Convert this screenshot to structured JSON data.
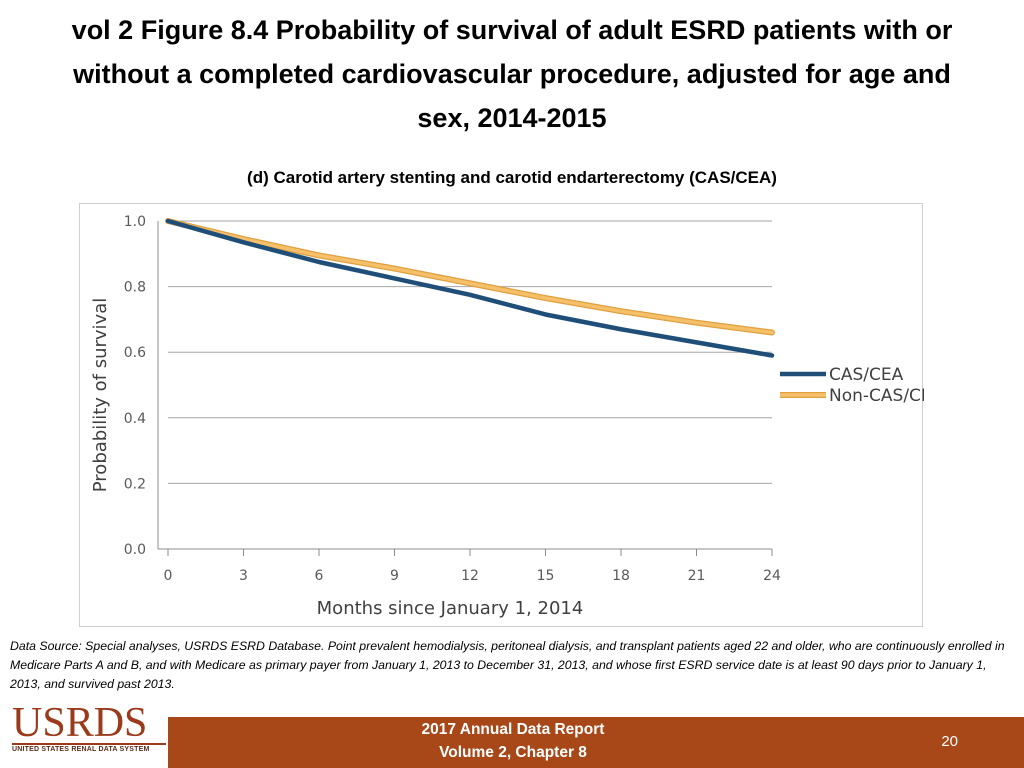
{
  "slide": {
    "title": "vol 2 Figure 8.4 Probability of survival of adult ESRD patients with or without a completed cardiovascular procedure, adjusted for age and sex, 2014-2015",
    "title_lines": [
      "vol 2 Figure 8.4 Probability of survival of adult ESRD patients with or",
      "without a completed cardiovascular procedure, adjusted for age and",
      "sex, 2014-2015"
    ],
    "subtitle": "(d) Carotid artery stenting and carotid endarterectomy (CAS/CEA)",
    "source_note": "Data Source: Special analyses, USRDS ESRD Database. Point prevalent hemodialysis, peritoneal dialysis, and transplant patients aged 22 and older, who are continuously enrolled in Medicare Parts A and B, and with Medicare as primary payer from January 1, 2013 to December 31, 2013, and whose first ESRD service date is at least 90 days prior to January 1, 2013, and survived past 2013."
  },
  "logo": {
    "word": "USRDS",
    "tagline": "UNITED STATES RENAL DATA SYSTEM"
  },
  "footer": {
    "line1": "2017 Annual Data Report",
    "line2": "Volume 2, Chapter 8",
    "page_number": "20",
    "bar_color": "#a84818"
  },
  "chart_data": {
    "type": "line",
    "title": "(d) Carotid artery stenting and carotid endarterectomy (CAS/CEA)",
    "xlabel": "Months since January 1, 2014",
    "ylabel": "Probability of survival",
    "xlim": [
      0,
      24
    ],
    "ylim": [
      0,
      1.0
    ],
    "x_ticks": [
      0,
      3,
      6,
      9,
      12,
      15,
      18,
      21,
      24
    ],
    "y_ticks": [
      0.0,
      0.2,
      0.4,
      0.6,
      0.8,
      1.0
    ],
    "y_tick_labels": [
      "0.0",
      "0.2",
      "0.4",
      "0.6",
      "0.8",
      "1.0"
    ],
    "grid": true,
    "legend_position": "right",
    "series": [
      {
        "name": "CAS/CEA",
        "color": "#1f4e79",
        "x": [
          0,
          3,
          6,
          9,
          12,
          15,
          18,
          21,
          24
        ],
        "values": [
          1.0,
          0.935,
          0.875,
          0.825,
          0.775,
          0.715,
          0.67,
          0.63,
          0.59
        ]
      },
      {
        "name": "Non-CAS/CEA",
        "color": "#f5c06a",
        "x": [
          0,
          3,
          6,
          9,
          12,
          15,
          18,
          21,
          24
        ],
        "values": [
          1.0,
          0.945,
          0.895,
          0.855,
          0.81,
          0.765,
          0.725,
          0.69,
          0.66
        ]
      }
    ]
  }
}
